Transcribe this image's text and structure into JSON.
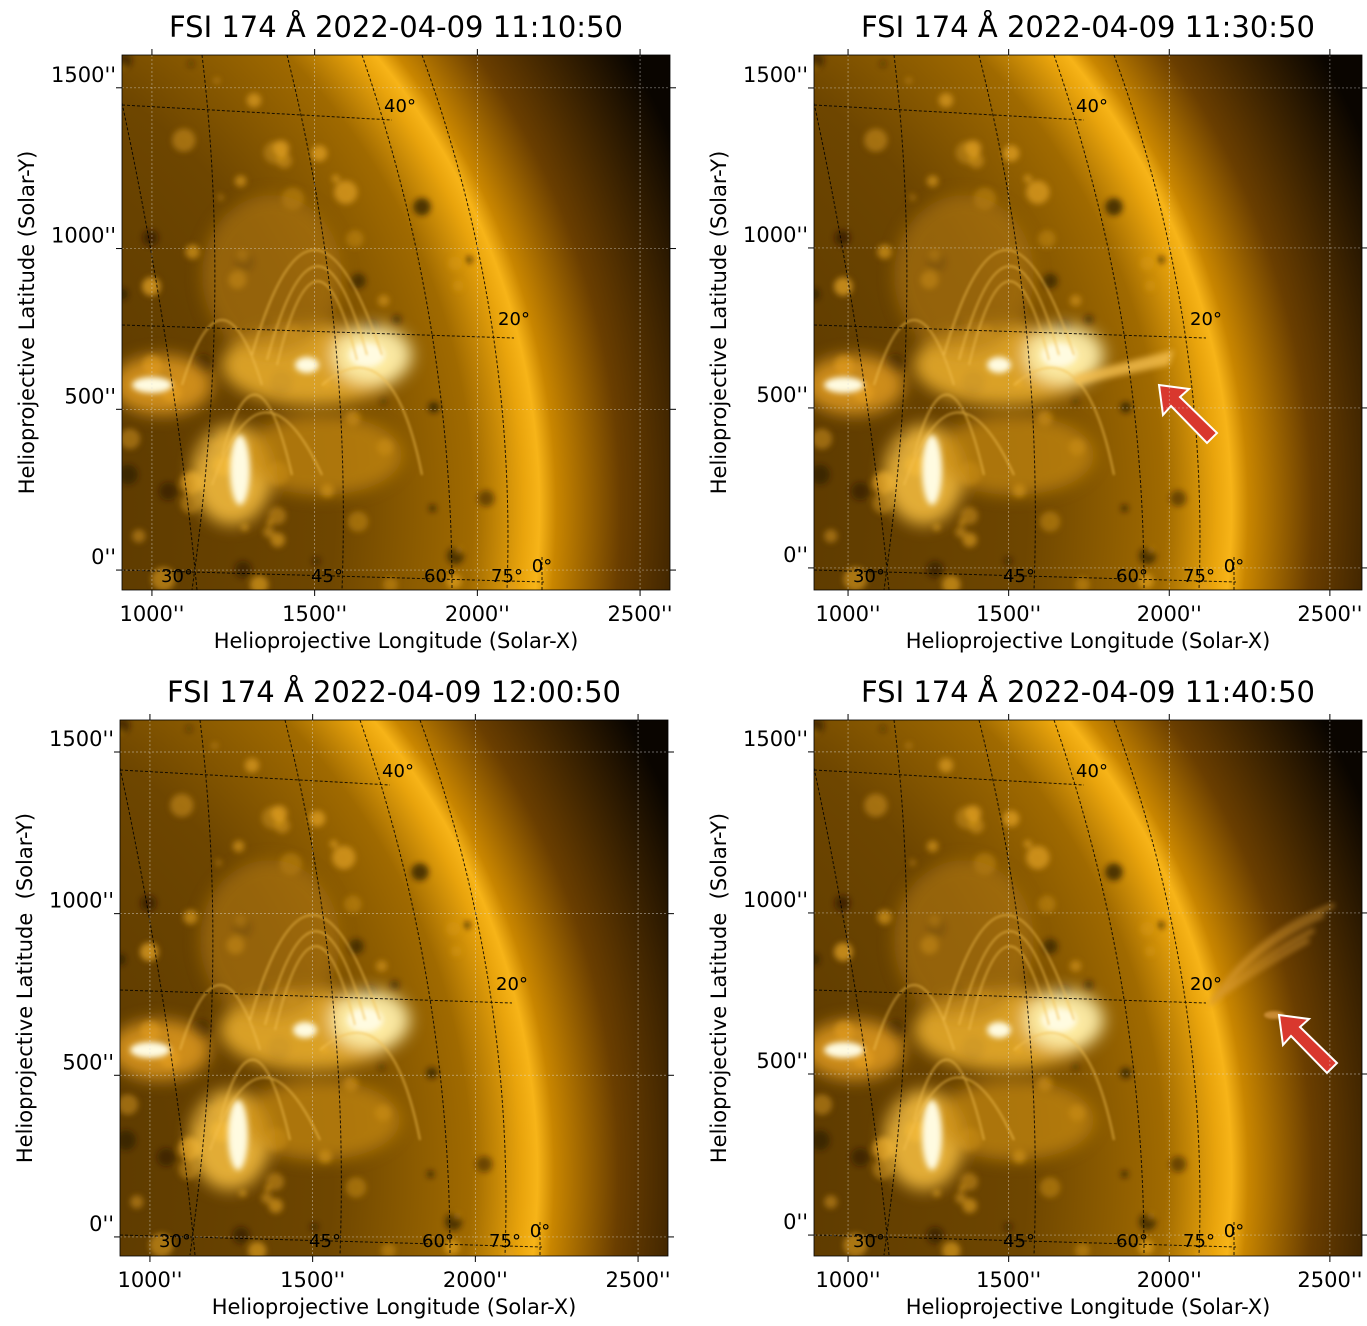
{
  "chart_data": [
    {
      "type": "image",
      "title": "FSI 174 Å 2022-04-09 11:10:50",
      "xlabel": "Helioprojective Longitude (Solar-X)",
      "ylabel": "Helioprojective Latitude (Solar-Y)",
      "xlim": [
        908,
        2592
      ],
      "ylim": [
        -62,
        1602
      ],
      "xticks": [
        {
          "value": 1000,
          "label": "1000''"
        },
        {
          "value": 1500,
          "label": "1500''"
        },
        {
          "value": 2000,
          "label": "2000''"
        },
        {
          "value": 2500,
          "label": "2500''"
        }
      ],
      "yticks": [
        {
          "value": 0,
          "label": "0''"
        },
        {
          "value": 500,
          "label": "500''"
        },
        {
          "value": 1000,
          "label": "1000''"
        },
        {
          "value": 1500,
          "label": "1500''"
        }
      ],
      "grid": true,
      "annotations": [
        "40°",
        "20°",
        "30°",
        "45°",
        "60°",
        "75°",
        "0°"
      ]
    },
    {
      "type": "image",
      "title": "FSI 174 Å 2022-04-09 11:30:50",
      "xlabel": "Helioprojective Longitude (Solar-X)",
      "ylabel": "Helioprojective Latitude (Solar-Y)",
      "xlim": [
        894,
        2600
      ],
      "ylim": [
        -69,
        1603
      ],
      "xticks": [
        {
          "value": 1000,
          "label": "1000''"
        },
        {
          "value": 1500,
          "label": "1500''"
        },
        {
          "value": 2000,
          "label": "2000''"
        },
        {
          "value": 2500,
          "label": "2500''"
        }
      ],
      "yticks": [
        {
          "value": 0,
          "label": "0''"
        },
        {
          "value": 500,
          "label": "500''"
        },
        {
          "value": 1000,
          "label": "1000''"
        },
        {
          "value": 1500,
          "label": "1500''"
        }
      ],
      "grid": true,
      "annotations": [
        "40°",
        "20°",
        "30°",
        "45°",
        "60°",
        "75°",
        "0°"
      ]
    },
    {
      "type": "image",
      "title": "FSI 174 Å 2022-04-09 12:00:50",
      "xlabel": "Helioprojective Longitude (Solar-X)",
      "ylabel": "Helioprojective Latitude  (Solar-Y)",
      "xlim": [
        908,
        2592
      ],
      "ylim": [
        -59,
        1599
      ],
      "xticks": [
        {
          "value": 1000,
          "label": "1000''"
        },
        {
          "value": 1500,
          "label": "1500''"
        },
        {
          "value": 2000,
          "label": "2000''"
        },
        {
          "value": 2500,
          "label": "2500''"
        }
      ],
      "yticks": [
        {
          "value": 0,
          "label": "0''"
        },
        {
          "value": 500,
          "label": "500''"
        },
        {
          "value": 1000,
          "label": "1000''"
        },
        {
          "value": 1500,
          "label": "1500''"
        }
      ],
      "grid": true,
      "annotations": [
        "40°",
        "20°",
        "30°",
        "45°",
        "60°",
        "75°",
        "0°"
      ]
    },
    {
      "type": "image",
      "title": "FSI 174 Å 2022-04-09 11:40:50",
      "xlabel": "Helioprojective Longitude (Solar-X)",
      "ylabel": "Helioprojective Latitude  (Solar-Y)",
      "xlim": [
        894,
        2600
      ],
      "ylim": [
        -65,
        1599
      ],
      "xticks": [
        {
          "value": 1000,
          "label": "1000''"
        },
        {
          "value": 1500,
          "label": "1500''"
        },
        {
          "value": 2000,
          "label": "2000''"
        },
        {
          "value": 2500,
          "label": "2500''"
        }
      ],
      "yticks": [
        {
          "value": 0,
          "label": "0''"
        },
        {
          "value": 500,
          "label": "500''"
        },
        {
          "value": 1000,
          "label": "1000''"
        },
        {
          "value": 1500,
          "label": "1500''"
        }
      ],
      "grid": true,
      "annotations": [
        "40°",
        "20°",
        "30°",
        "45°",
        "60°",
        "75°",
        "0°"
      ]
    }
  ]
}
